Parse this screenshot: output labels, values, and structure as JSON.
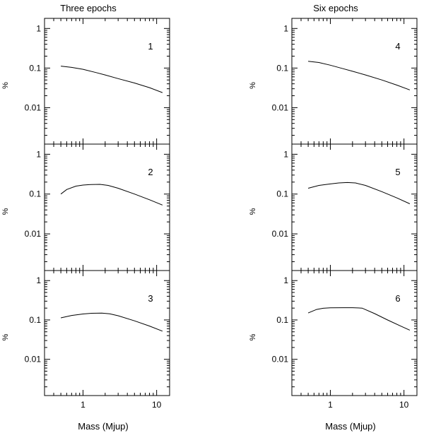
{
  "figure": {
    "left_title": "Three epochs",
    "right_title": "Six epochs",
    "xlabel": "Mass (Mjup)"
  },
  "chart_data": [
    {
      "type": "line",
      "title": "Three epochs",
      "panel_label": "1",
      "ylabel": "%",
      "xlabel": "",
      "x_scale": "log",
      "y_scale": "log",
      "xlim": [
        0.3,
        15
      ],
      "ylim": [
        0.0012,
        1.8
      ],
      "xticks": [
        1,
        10
      ],
      "xtick_labels": [
        "1",
        "10"
      ],
      "yticks": [
        1,
        0.1,
        0.01
      ],
      "ytick_labels": [
        "1",
        "0.1",
        "0.01"
      ],
      "series": [
        {
          "x": [
            0.5,
            0.7,
            1.0,
            1.5,
            2.0,
            3.0,
            5.0,
            8.0,
            12.0
          ],
          "y": [
            0.112,
            0.104,
            0.093,
            0.077,
            0.067,
            0.054,
            0.042,
            0.032,
            0.024
          ]
        }
      ]
    },
    {
      "type": "line",
      "panel_label": "2",
      "ylabel": "%",
      "xlabel": "",
      "x_scale": "log",
      "y_scale": "log",
      "xlim": [
        0.3,
        15
      ],
      "ylim": [
        0.0012,
        1.8
      ],
      "xticks": [
        1,
        10
      ],
      "xtick_labels": [
        "1",
        "10"
      ],
      "yticks": [
        1,
        0.1,
        0.01
      ],
      "ytick_labels": [
        "1",
        "0.1",
        "0.01"
      ],
      "series": [
        {
          "x": [
            0.5,
            0.6,
            0.8,
            1.0,
            1.3,
            1.7,
            2.2,
            3.0,
            5.0,
            8.0,
            12.0
          ],
          "y": [
            0.1,
            0.13,
            0.158,
            0.168,
            0.174,
            0.175,
            0.165,
            0.14,
            0.1,
            0.072,
            0.053
          ]
        }
      ]
    },
    {
      "type": "line",
      "panel_label": "3",
      "ylabel": "%",
      "xlabel": "Mass (Mjup)",
      "x_scale": "log",
      "y_scale": "log",
      "xlim": [
        0.3,
        15
      ],
      "ylim": [
        0.0012,
        1.8
      ],
      "xticks": [
        1,
        10
      ],
      "xtick_labels": [
        "1",
        "10"
      ],
      "yticks": [
        1,
        0.1,
        0.01
      ],
      "ytick_labels": [
        "1",
        "0.1",
        "0.01"
      ],
      "series": [
        {
          "x": [
            0.5,
            0.7,
            1.0,
            1.3,
            1.8,
            2.3,
            3.0,
            5.0,
            8.0,
            12.0
          ],
          "y": [
            0.113,
            0.13,
            0.142,
            0.148,
            0.149,
            0.143,
            0.128,
            0.095,
            0.07,
            0.052
          ]
        }
      ]
    },
    {
      "type": "line",
      "title": "Six epochs",
      "panel_label": "4",
      "ylabel": "%",
      "xlabel": "",
      "x_scale": "log",
      "y_scale": "log",
      "xlim": [
        0.3,
        15
      ],
      "ylim": [
        0.0012,
        1.8
      ],
      "xticks": [
        1,
        10
      ],
      "xtick_labels": [
        "1",
        "10"
      ],
      "yticks": [
        1,
        0.1,
        0.01
      ],
      "ytick_labels": [
        "1",
        "0.1",
        "0.01"
      ],
      "series": [
        {
          "x": [
            0.5,
            0.7,
            1.0,
            1.5,
            2.0,
            3.0,
            5.0,
            8.0,
            12.0
          ],
          "y": [
            0.148,
            0.138,
            0.118,
            0.096,
            0.083,
            0.067,
            0.05,
            0.037,
            0.028
          ]
        }
      ]
    },
    {
      "type": "line",
      "panel_label": "5",
      "ylabel": "%",
      "xlabel": "",
      "x_scale": "log",
      "y_scale": "log",
      "xlim": [
        0.3,
        15
      ],
      "ylim": [
        0.0012,
        1.8
      ],
      "xticks": [
        1,
        10
      ],
      "xtick_labels": [
        "1",
        "10"
      ],
      "yticks": [
        1,
        0.1,
        0.01
      ],
      "ytick_labels": [
        "1",
        "0.1",
        "0.01"
      ],
      "series": [
        {
          "x": [
            0.5,
            0.7,
            1.0,
            1.3,
            1.7,
            2.2,
            3.0,
            5.0,
            8.0,
            12.0
          ],
          "y": [
            0.14,
            0.165,
            0.18,
            0.19,
            0.195,
            0.19,
            0.165,
            0.115,
            0.08,
            0.057
          ]
        }
      ]
    },
    {
      "type": "line",
      "panel_label": "6",
      "ylabel": "%",
      "xlabel": "Mass (Mjup)",
      "x_scale": "log",
      "y_scale": "log",
      "xlim": [
        0.3,
        15
      ],
      "ylim": [
        0.0012,
        1.8
      ],
      "xticks": [
        1,
        10
      ],
      "xtick_labels": [
        "1",
        "10"
      ],
      "yticks": [
        1,
        0.1,
        0.01
      ],
      "ytick_labels": [
        "1",
        "0.1",
        "0.01"
      ],
      "series": [
        {
          "x": [
            0.5,
            0.65,
            0.8,
            1.0,
            1.5,
            2.0,
            2.7,
            4.0,
            6.0,
            9.0,
            12.0
          ],
          "y": [
            0.15,
            0.185,
            0.198,
            0.203,
            0.205,
            0.205,
            0.2,
            0.145,
            0.1,
            0.07,
            0.055
          ]
        }
      ]
    }
  ]
}
